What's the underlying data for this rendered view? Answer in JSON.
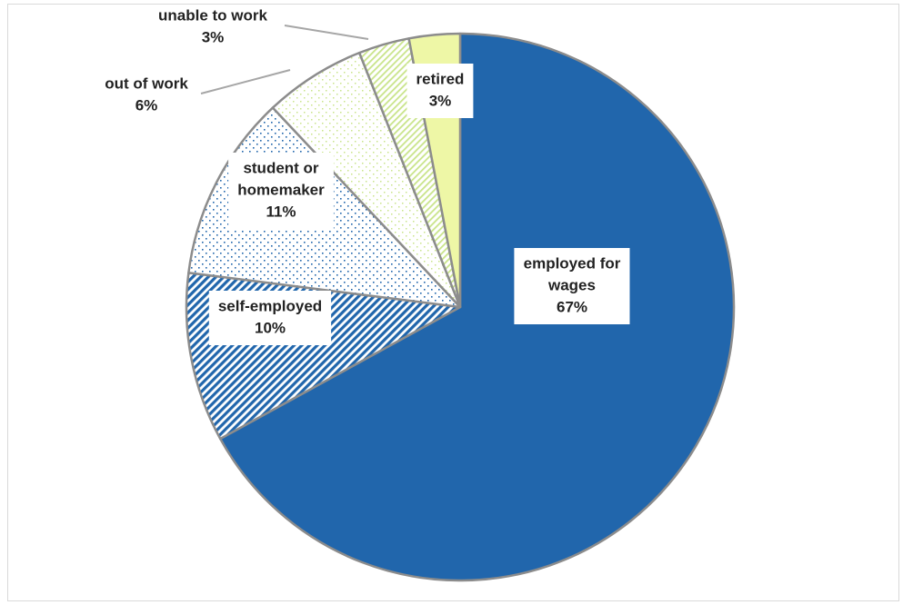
{
  "chart_data": {
    "type": "pie",
    "title": "",
    "legend": "none",
    "slices": [
      {
        "label_lines": [
          "employed for",
          "wages"
        ],
        "value": 67,
        "value_label": "67%",
        "color": "#2166ac",
        "pattern": "solid"
      },
      {
        "label_lines": [
          "self-employed"
        ],
        "value": 10,
        "value_label": "10%",
        "color": "#2166ac",
        "pattern": "diagonal-stripes"
      },
      {
        "label_lines": [
          "student or",
          "homemaker"
        ],
        "value": 11,
        "value_label": "11%",
        "color": "#2166ac",
        "pattern": "dots"
      },
      {
        "label_lines": [
          "out of work"
        ],
        "value": 6,
        "value_label": "6%",
        "color": "#c9e48a",
        "pattern": "sparse-dots"
      },
      {
        "label_lines": [
          "unable to work"
        ],
        "value": 3,
        "value_label": "3%",
        "color": "#c9e48a",
        "pattern": "thin-stripes"
      },
      {
        "label_lines": [
          "retired"
        ],
        "value": 3,
        "value_label": "3%",
        "color": "#eef7a6",
        "pattern": "solid"
      }
    ]
  }
}
